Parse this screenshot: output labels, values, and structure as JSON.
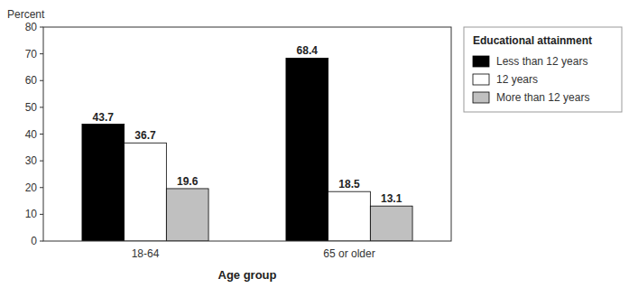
{
  "chart_data": {
    "type": "bar",
    "categories": [
      "18-64",
      "65 or older"
    ],
    "series": [
      {
        "name": "Less than 12 years",
        "color": "#000000",
        "values": [
          43.7,
          68.4
        ]
      },
      {
        "name": "12 years",
        "color": "#ffffff",
        "values": [
          36.7,
          18.5
        ]
      },
      {
        "name": "More than 12 years",
        "color": "#c0c0c0",
        "values": [
          19.6,
          13.1
        ]
      }
    ],
    "ylabel": "Percent",
    "xlabel": "Age group",
    "legend_title": "Educational attainment",
    "ylim": [
      0,
      80
    ],
    "yticks": [
      0,
      10,
      20,
      30,
      40,
      50,
      60,
      70,
      80
    ],
    "data_labels": true,
    "legend": "right",
    "grid": false
  }
}
